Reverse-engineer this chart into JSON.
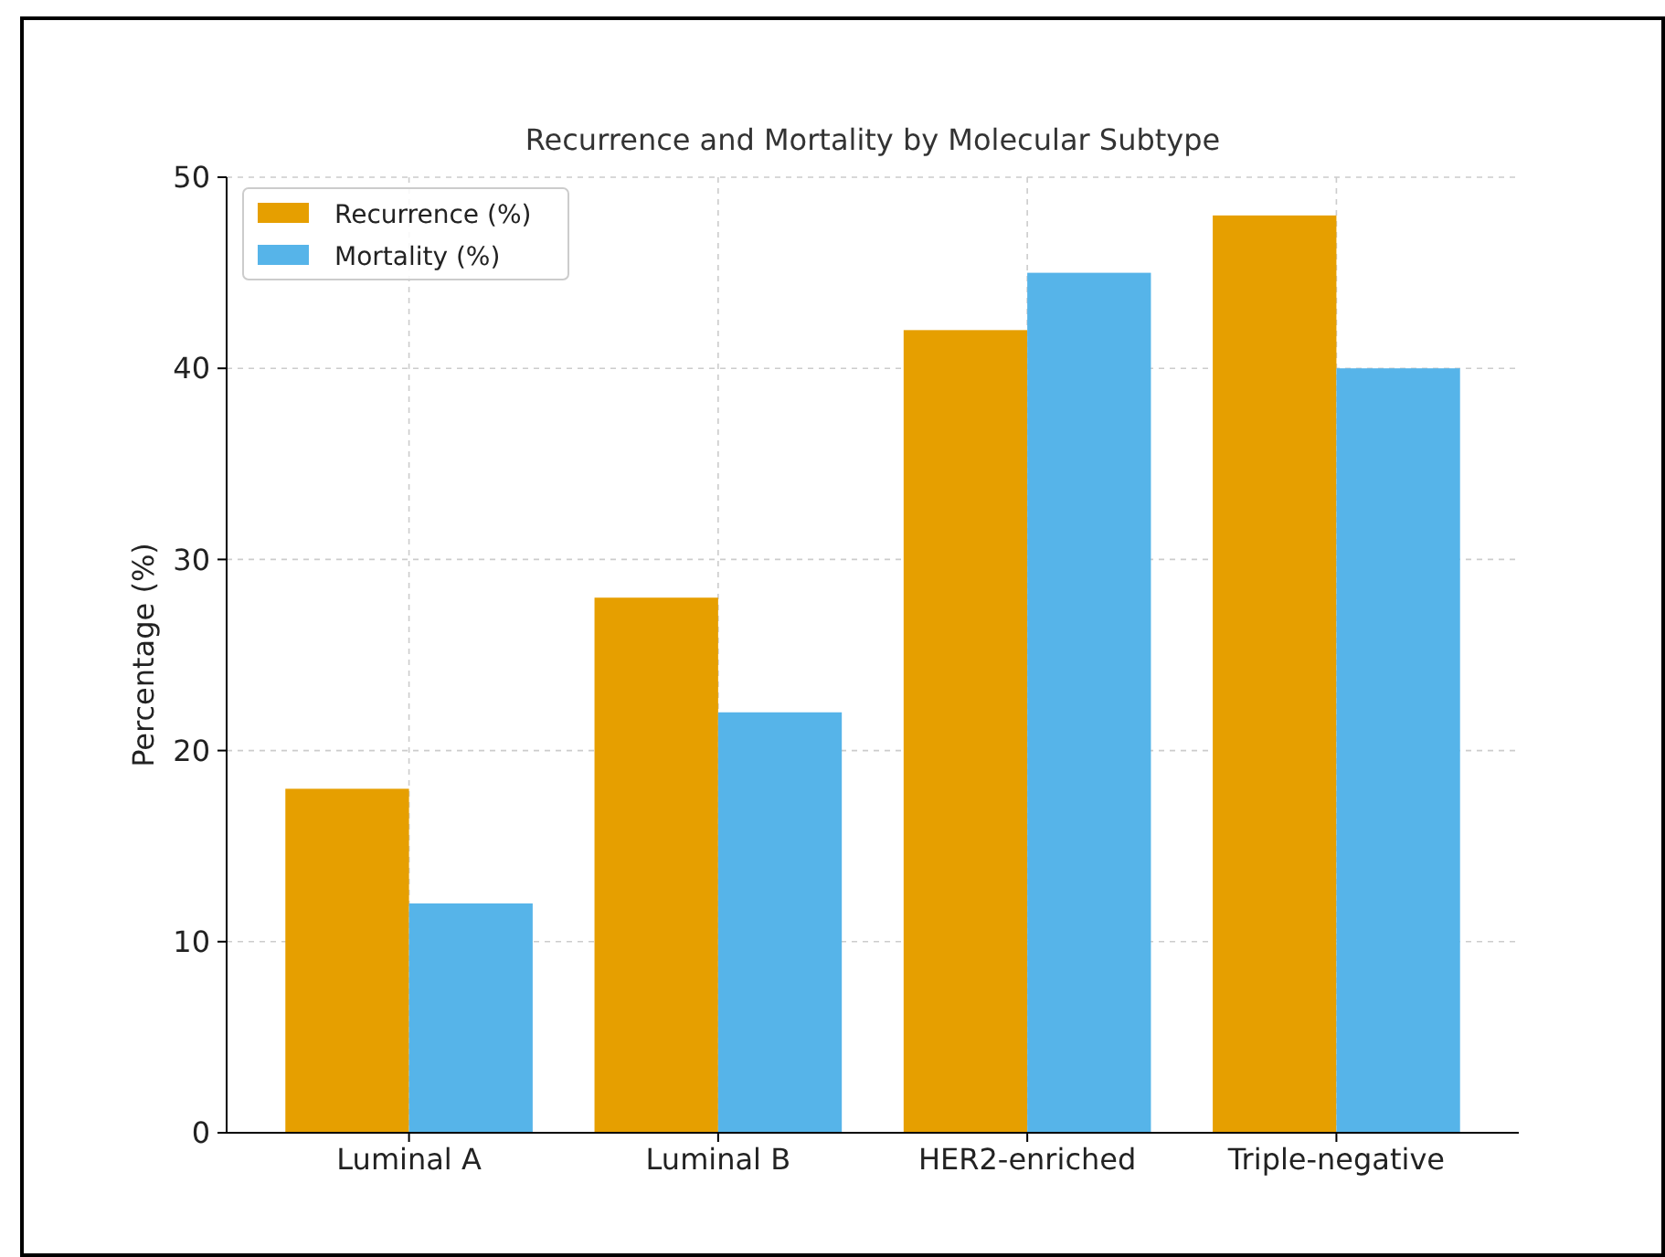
{
  "chart_data": {
    "type": "bar",
    "title": "Recurrence and Mortality by Molecular Subtype",
    "ylabel": "Percentage (%)",
    "categories": [
      "Luminal A",
      "Luminal B",
      "HER2-enriched",
      "Triple-negative"
    ],
    "series": [
      {
        "name": "Recurrence (%)",
        "color": "#e69f00",
        "values": [
          18,
          28,
          42,
          48
        ]
      },
      {
        "name": "Mortality (%)",
        "color": "#56b4e9",
        "values": [
          12,
          22,
          45,
          40
        ]
      }
    ],
    "ylim": [
      0,
      50
    ],
    "yticks": [
      0,
      10,
      20,
      30,
      40,
      50
    ],
    "grid": true,
    "legend": "top left"
  }
}
